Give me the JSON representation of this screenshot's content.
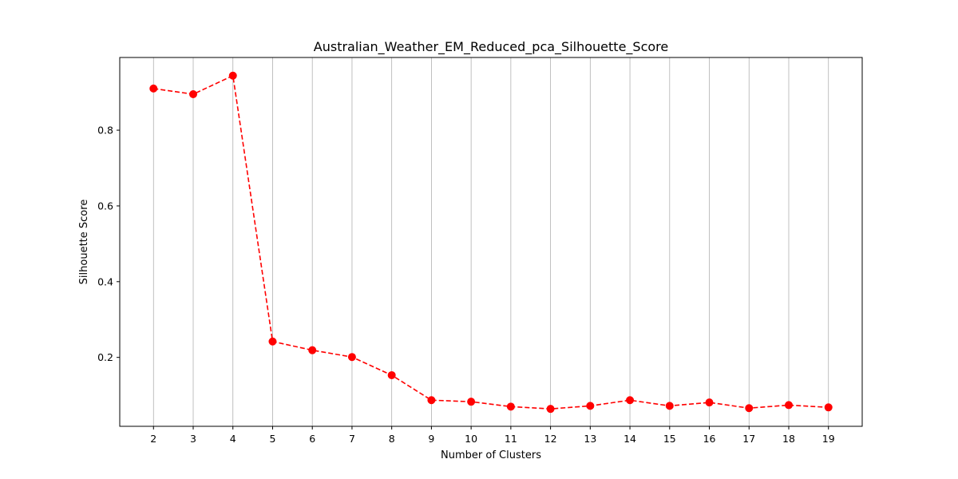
{
  "chart_data": {
    "type": "line",
    "title": "Australian_Weather_EM_Reduced_pca_Silhouette_Score",
    "xlabel": "Number of Clusters",
    "ylabel": "Silhouette Score",
    "x": [
      2,
      3,
      4,
      5,
      6,
      7,
      8,
      9,
      10,
      11,
      12,
      13,
      14,
      15,
      16,
      17,
      18,
      19
    ],
    "series": [
      {
        "values": [
          0.91,
          0.895,
          0.944,
          0.242,
          0.219,
          0.201,
          0.153,
          0.087,
          0.083,
          0.07,
          0.064,
          0.072,
          0.087,
          0.072,
          0.081,
          0.066,
          0.074,
          0.068
        ],
        "color": "#ff0000",
        "line_style": "dashed",
        "marker": "circle"
      }
    ],
    "xlim": [
      1.15,
      19.85
    ],
    "ylim": [
      0.018,
      0.992
    ],
    "yticks": [
      0.2,
      0.4,
      0.6,
      0.8
    ],
    "ytick_labels": [
      "0.2",
      "0.4",
      "0.6",
      "0.8"
    ],
    "grid": "vertical"
  }
}
